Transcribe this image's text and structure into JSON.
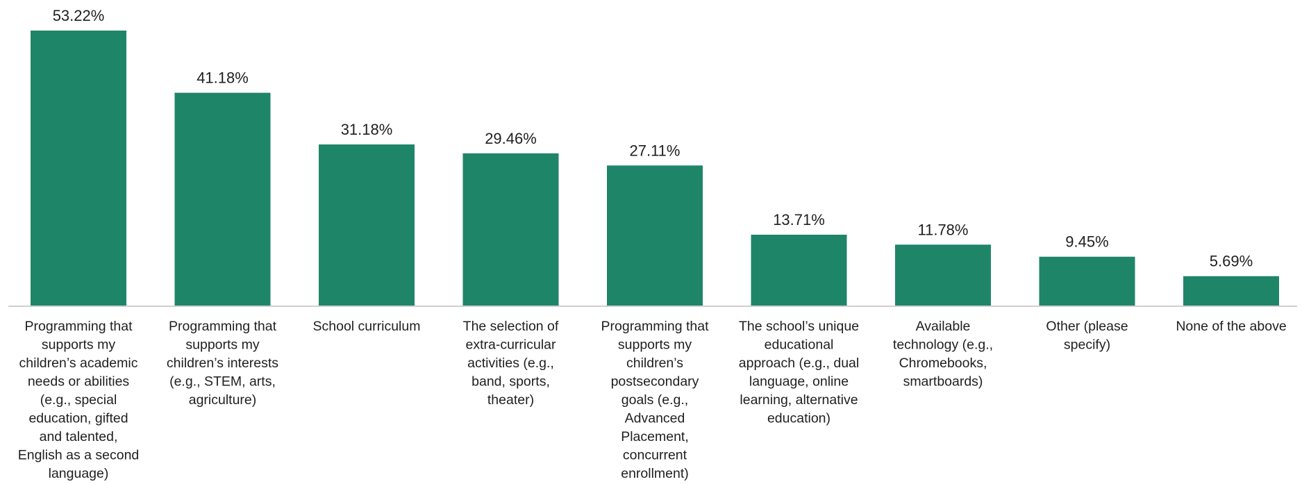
{
  "chart_data": {
    "type": "bar",
    "categories": [
      "Programming that supports my children’s academic needs or abilities (e.g., special education, gifted and talented, English as a second language)",
      "Programming that supports my children’s interests (e.g., STEM, arts, agriculture)",
      "School curriculum",
      "The selection of extra-curricular activities (e.g., band, sports, theater)",
      "Programming that supports my children’s postsecondary goals (e.g., Advanced Placement, concurrent enrollment)",
      "The school’s unique educational approach (e.g., dual language, online learning, alternative education)",
      "Available technology (e.g., Chromebooks, smartboards)",
      "Other (please specify)",
      "None of the above"
    ],
    "category_lines": [
      [
        "Programming that",
        "supports my",
        "children’s academic",
        "needs or abilities",
        "(e.g., special",
        "education, gifted",
        "and talented,",
        "English as a second",
        "language)"
      ],
      [
        "Programming that",
        "supports my",
        "children’s interests",
        "(e.g., STEM, arts,",
        "agriculture)"
      ],
      [
        "School curriculum"
      ],
      [
        "The selection of",
        "extra-curricular",
        "activities (e.g.,",
        "band, sports,",
        "theater)"
      ],
      [
        "Programming that",
        "supports my",
        "children’s",
        "postsecondary",
        "goals (e.g.,",
        "Advanced",
        "Placement,",
        "concurrent",
        "enrollment)"
      ],
      [
        "The school’s unique",
        "educational",
        "approach (e.g., dual",
        "language, online",
        "learning, alternative",
        "education)"
      ],
      [
        "Available",
        "technology (e.g.,",
        "Chromebooks,",
        "smartboards)"
      ],
      [
        "Other (please",
        "specify)"
      ],
      [
        "None of the above"
      ]
    ],
    "values": [
      53.22,
      41.18,
      31.18,
      29.46,
      27.11,
      13.71,
      11.78,
      9.45,
      5.69
    ],
    "value_labels": [
      "53.22%",
      "41.18%",
      "31.18%",
      "29.46%",
      "27.11%",
      "13.71%",
      "11.78%",
      "9.45%",
      "5.69%"
    ],
    "ylim": [
      0,
      53.22
    ],
    "grid": false,
    "legend": "none",
    "colors": {
      "bar": "#1f8568",
      "axis": "#bfbfbf",
      "text": "#1f1f1f"
    }
  }
}
